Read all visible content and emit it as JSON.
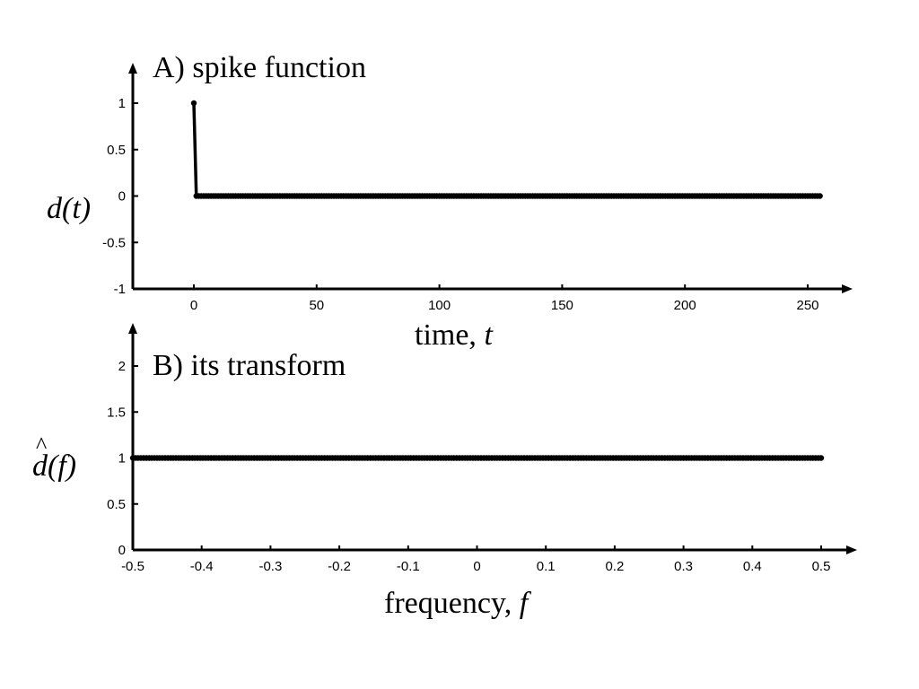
{
  "chart_data": [
    {
      "type": "line",
      "title": "A) spike function",
      "ylabel": "d(t)",
      "xlabel": "time, t",
      "xlabel_text": "time, ",
      "xlabel_var": "t",
      "xlim": [
        -25,
        270
      ],
      "ylim": [
        -1,
        1.2
      ],
      "xticks": [
        0,
        50,
        100,
        150,
        200,
        250
      ],
      "xtick_labels": [
        "0",
        "50",
        "100",
        "150",
        "200",
        "250"
      ],
      "yticks": [
        -1,
        -0.5,
        0,
        0.5,
        1
      ],
      "ytick_labels": [
        "-1",
        "-0.5",
        "0",
        "0.5",
        "1"
      ],
      "grid": false,
      "series": [
        {
          "x_start": 0,
          "x_step": 1,
          "count": 256,
          "values_rule": "1 at t=0, 0 elsewhere",
          "first_value": 1,
          "rest_value": 0
        }
      ]
    },
    {
      "type": "line",
      "title": "B) its transform",
      "ylabel": "d(f)",
      "ylabel_hat": "^",
      "xlabel": "frequency, f",
      "xlabel_text": "frequency, ",
      "xlabel_var": "f",
      "xlim": [
        -0.5,
        0.53
      ],
      "ylim": [
        0,
        2.4
      ],
      "xticks": [
        -0.5,
        -0.4,
        -0.3,
        -0.2,
        -0.1,
        0,
        0.1,
        0.2,
        0.3,
        0.4,
        0.5
      ],
      "xtick_labels": [
        "-0.5",
        "-0.4",
        "-0.3",
        "-0.2",
        "-0.1",
        "0",
        "0.1",
        "0.2",
        "0.3",
        "0.4",
        "0.5"
      ],
      "yticks": [
        0,
        0.5,
        1,
        1.5,
        2
      ],
      "ytick_labels": [
        "0",
        "0.5",
        "1",
        "1.5",
        "2"
      ],
      "grid": false,
      "series": [
        {
          "x_start": -0.5,
          "x_end": 0.5,
          "count": 256,
          "constant_value": 1
        }
      ]
    }
  ]
}
